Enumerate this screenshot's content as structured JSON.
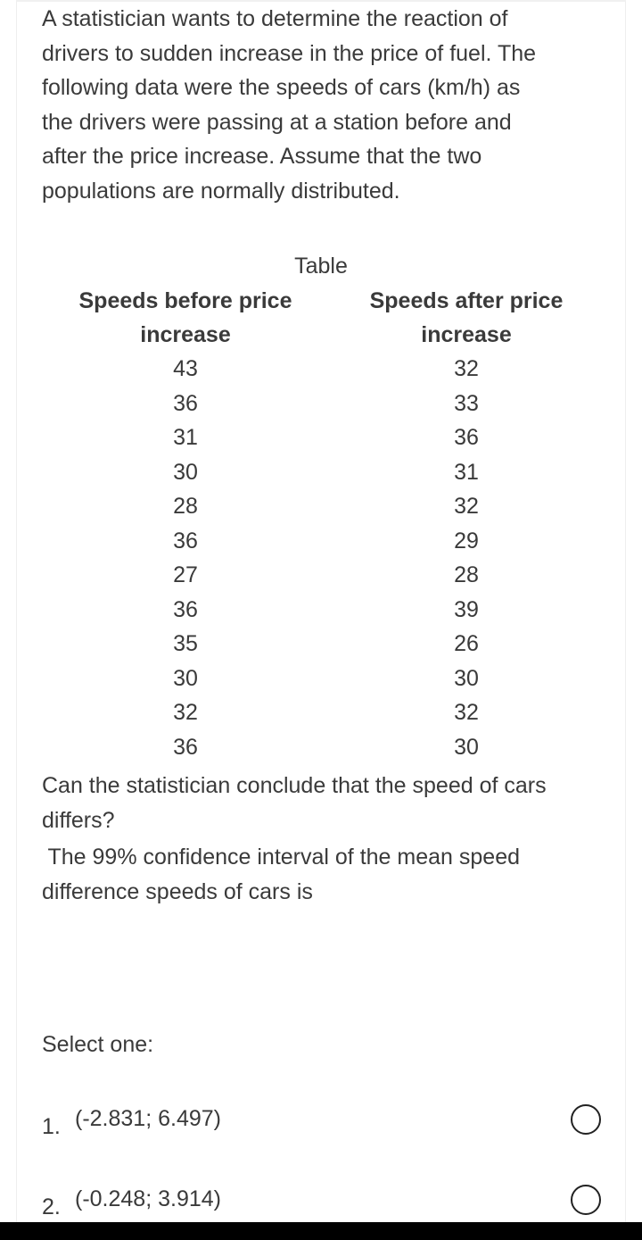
{
  "question": {
    "intro_lines": [
      "A statistician wants to determine the reaction of",
      "drivers to sudden increase in the price of fuel.  The",
      "following data were the speeds of cars (km/h) as",
      "the drivers were passing at a station before and",
      "after the price increase.  Assume that the two",
      "populations are normally distributed."
    ],
    "table_caption": "Table",
    "table": {
      "headers": [
        [
          "Speeds before price",
          "increase"
        ],
        [
          "Speeds after price",
          "increase"
        ]
      ],
      "before": [
        "43",
        "36",
        "31",
        "30",
        "28",
        "36",
        "27",
        "36",
        "35",
        "30",
        "32",
        "36"
      ],
      "after": [
        "32",
        "33",
        "36",
        "31",
        "32",
        "29",
        "28",
        "39",
        "26",
        "30",
        "32",
        "30"
      ]
    },
    "prompt_lines": [
      "Can the statistician conclude that the speed of cars",
      "differs?"
    ],
    "ci_lines": [
      " The 99% confidence interval of the mean speed",
      "difference speeds of cars is"
    ]
  },
  "answer": {
    "select_label": "Select one:",
    "options": [
      {
        "number": "1.",
        "text": "(-2.831; 6.497)"
      },
      {
        "number": "2.",
        "text": "(-0.248; 3.914)"
      }
    ]
  },
  "colors": {
    "text": "#3a3a3a",
    "radio_border": "#222222",
    "bottom_bar": "#000000"
  },
  "icons": {
    "radio": "radio-button-unselected-icon"
  }
}
